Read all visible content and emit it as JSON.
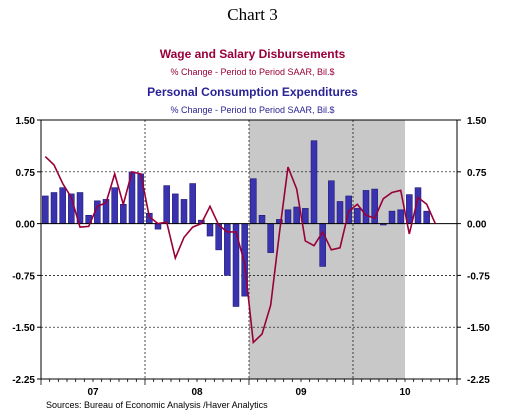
{
  "chart_data": {
    "type": "bar+line",
    "title": "Chart 3",
    "legend": [
      {
        "name": "Wage and Salary Disbursements",
        "subtitle": "% Change - Period to Period     SAAR, Bil.$",
        "color": "#99003a",
        "kind": "line"
      },
      {
        "name": "Personal Consumption Expenditures",
        "subtitle": "% Change - Period to Period     SAAR, Bil.$",
        "color": "#2a2395",
        "kind": "bar"
      }
    ],
    "x_labels": [
      "07",
      "08",
      "09",
      "10"
    ],
    "y_ticks": [
      "1.50",
      "0.75",
      "0.00",
      "-0.75",
      "-1.50",
      "-2.25"
    ],
    "ylim": [
      -2.25,
      1.5
    ],
    "recession_shading": {
      "start_month": 24,
      "end_month": 42
    },
    "months_total": 48,
    "series": [
      {
        "name": "Personal Consumption Expenditures",
        "values": [
          0.4,
          0.45,
          0.52,
          0.43,
          0.45,
          0.12,
          0.33,
          0.35,
          0.52,
          0.28,
          0.75,
          0.72,
          0.15,
          -0.08,
          0.55,
          0.43,
          0.35,
          0.58,
          0.05,
          -0.18,
          -0.38,
          -0.75,
          -1.2,
          -1.05,
          0.65,
          0.12,
          -0.42,
          0.06,
          0.2,
          0.24,
          0.22,
          1.2,
          -0.62,
          0.62,
          0.32,
          0.4,
          0.22,
          0.48,
          0.5,
          -0.02,
          0.18,
          0.2,
          0.42,
          0.52,
          0.18
        ]
      },
      {
        "name": "Wage and Salary Disbursements",
        "values": [
          0.97,
          0.85,
          0.58,
          0.38,
          -0.05,
          -0.04,
          0.25,
          0.3,
          0.72,
          0.28,
          0.75,
          0.72,
          0.1,
          0.0,
          0.02,
          -0.5,
          -0.2,
          -0.05,
          0.0,
          0.25,
          -0.02,
          -0.12,
          -0.12,
          -0.58,
          -1.72,
          -1.6,
          -1.18,
          -0.15,
          0.82,
          0.5,
          -0.25,
          -0.32,
          -0.12,
          -0.38,
          -0.35,
          0.18,
          0.28,
          0.12,
          0.08,
          0.36,
          0.45,
          0.48,
          -0.15,
          0.38,
          0.28,
          0.0
        ]
      }
    ],
    "source": "Sources:  Bureau of Economic Analysis /Haver Analytics"
  }
}
